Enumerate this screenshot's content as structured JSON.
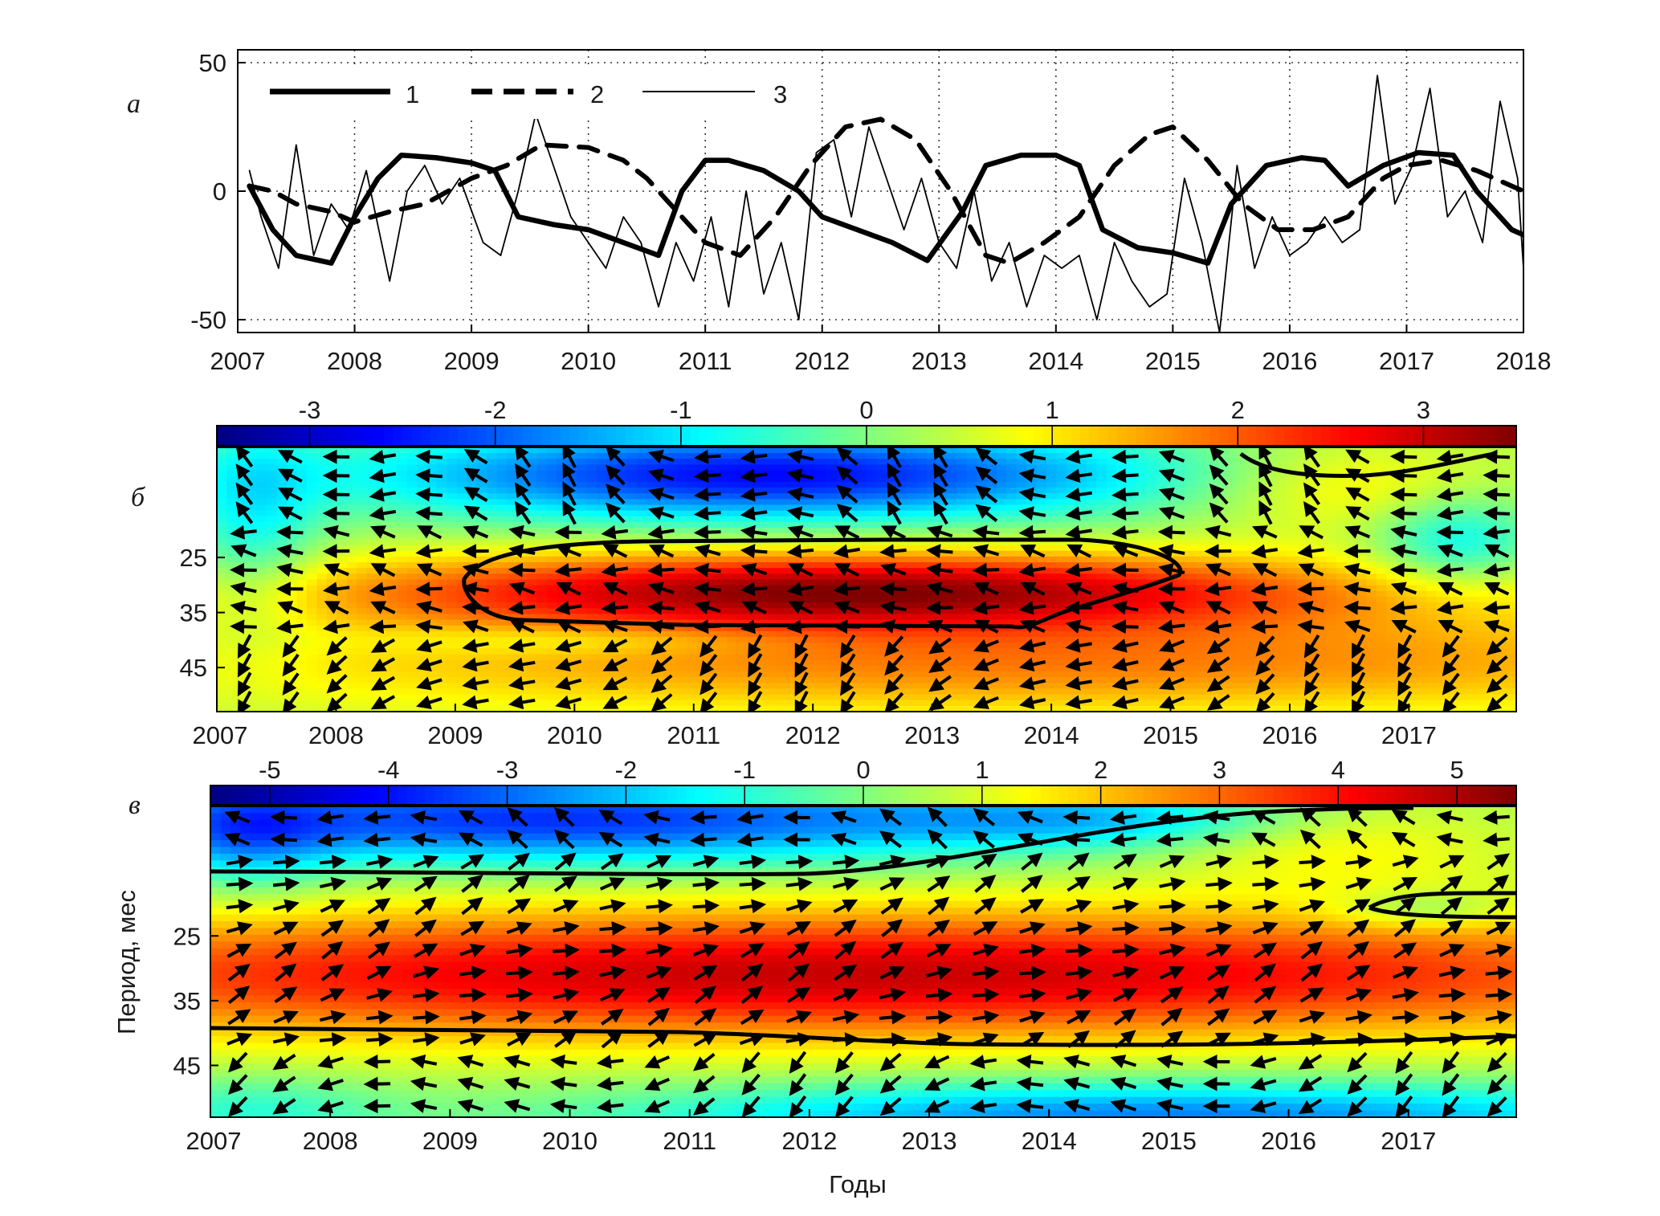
{
  "panel_labels": [
    "а",
    "б",
    "в"
  ],
  "chart_data": [
    {
      "type": "line",
      "panel": "а",
      "xlim": [
        2007,
        2018
      ],
      "ylim": [
        -55,
        55
      ],
      "x_ticks": [
        "2007",
        "2008",
        "2009",
        "2010",
        "2011",
        "2012",
        "2013",
        "2014",
        "2015",
        "2016",
        "2017",
        "2018"
      ],
      "y_ticks": [
        "50",
        "0",
        "-50"
      ],
      "grid": "dotted",
      "legend_position": "top-left",
      "series": [
        {
          "name": "1",
          "style": "thick-solid",
          "x": [
            2007.1,
            2007.3,
            2007.5,
            2007.8,
            2008.0,
            2008.2,
            2008.4,
            2008.7,
            2009.0,
            2009.2,
            2009.4,
            2009.7,
            2010.0,
            2010.3,
            2010.6,
            2010.8,
            2011.0,
            2011.2,
            2011.5,
            2011.8,
            2012.0,
            2012.3,
            2012.6,
            2012.9,
            2013.2,
            2013.4,
            2013.7,
            2014.0,
            2014.2,
            2014.4,
            2014.7,
            2015.0,
            2015.3,
            2015.5,
            2015.8,
            2016.1,
            2016.3,
            2016.5,
            2016.8,
            2017.1,
            2017.4,
            2017.6,
            2017.9,
            2018.0
          ],
          "values": [
            2,
            -15,
            -25,
            -28,
            -10,
            5,
            14,
            13,
            11,
            8,
            -10,
            -13,
            -15,
            -20,
            -25,
            0,
            12,
            12,
            8,
            0,
            -10,
            -15,
            -20,
            -27,
            -8,
            10,
            14,
            14,
            10,
            -15,
            -22,
            -24,
            -28,
            -5,
            10,
            13,
            12,
            2,
            10,
            15,
            14,
            0,
            -15,
            -17
          ]
        },
        {
          "name": "2",
          "style": "dashed",
          "x": [
            2007.1,
            2007.3,
            2007.5,
            2007.8,
            2008.0,
            2008.3,
            2008.6,
            2009.0,
            2009.3,
            2009.6,
            2010.0,
            2010.3,
            2010.5,
            2010.7,
            2011.0,
            2011.3,
            2011.6,
            2011.9,
            2012.2,
            2012.5,
            2012.8,
            2013.1,
            2013.4,
            2013.6,
            2013.9,
            2014.2,
            2014.5,
            2014.8,
            2015.0,
            2015.3,
            2015.6,
            2015.9,
            2016.2,
            2016.5,
            2016.8,
            2017.0,
            2017.3,
            2017.6,
            2017.9,
            2018.0
          ],
          "values": [
            2,
            0,
            -5,
            -8,
            -12,
            -8,
            -5,
            5,
            10,
            18,
            17,
            12,
            5,
            -5,
            -20,
            -25,
            -10,
            10,
            25,
            28,
            20,
            0,
            -25,
            -28,
            -20,
            -10,
            10,
            22,
            25,
            12,
            -5,
            -15,
            -15,
            -10,
            5,
            10,
            12,
            8,
            2,
            0
          ]
        },
        {
          "name": "3",
          "style": "thin-solid",
          "x": [
            2007.1,
            2007.2,
            2007.35,
            2007.5,
            2007.65,
            2007.8,
            2007.95,
            2008.1,
            2008.3,
            2008.45,
            2008.6,
            2008.75,
            2008.9,
            2009.1,
            2009.25,
            2009.4,
            2009.55,
            2009.7,
            2009.85,
            2010.0,
            2010.15,
            2010.3,
            2010.45,
            2010.6,
            2010.75,
            2010.9,
            2011.05,
            2011.2,
            2011.35,
            2011.5,
            2011.65,
            2011.8,
            2011.95,
            2012.1,
            2012.25,
            2012.4,
            2012.55,
            2012.7,
            2012.85,
            2013.0,
            2013.15,
            2013.3,
            2013.45,
            2013.6,
            2013.75,
            2013.9,
            2014.05,
            2014.2,
            2014.35,
            2014.5,
            2014.65,
            2014.8,
            2014.95,
            2015.1,
            2015.25,
            2015.4,
            2015.55,
            2015.7,
            2015.85,
            2016.0,
            2016.15,
            2016.3,
            2016.45,
            2016.6,
            2016.75,
            2016.9,
            2017.05,
            2017.2,
            2017.35,
            2017.5,
            2017.65,
            2017.8,
            2017.95,
            2018.0
          ],
          "values": [
            8,
            -10,
            -30,
            18,
            -25,
            -5,
            -15,
            8,
            -35,
            0,
            10,
            -5,
            5,
            -20,
            -25,
            0,
            30,
            10,
            -10,
            -20,
            -30,
            -10,
            -20,
            -45,
            -20,
            -35,
            -10,
            -45,
            0,
            -40,
            -20,
            -50,
            15,
            20,
            -10,
            25,
            5,
            -15,
            5,
            -20,
            -30,
            0,
            -35,
            -20,
            -45,
            -25,
            -30,
            -25,
            -50,
            -20,
            -35,
            -45,
            -40,
            5,
            -20,
            -55,
            10,
            -30,
            -10,
            -25,
            -20,
            -10,
            -20,
            -15,
            45,
            -5,
            10,
            40,
            -10,
            0,
            -20,
            35,
            5,
            -30
          ]
        }
      ]
    },
    {
      "type": "heatmap",
      "panel": "б",
      "colorbar_ticks": [
        "-3",
        "-2",
        "-1",
        "0",
        "1",
        "2",
        "3"
      ],
      "colorbar_range": [
        -3.5,
        3.5
      ],
      "xlim": [
        2007,
        2017.9
      ],
      "x_ticks": [
        "2007",
        "2008",
        "2009",
        "2010",
        "2011",
        "2012",
        "2013",
        "2014",
        "2015",
        "2016",
        "2017"
      ],
      "ylim": [
        5,
        53
      ],
      "y_ticks": [
        "25",
        "35",
        "45"
      ],
      "ylabel": "",
      "features": [
        "negative band at periods 5-20 mo, 2009-2014",
        "strong positive core at periods 26-38 mo, 2009.5-2015",
        "positive band at periods 35-50 mo through whole record",
        "vector (phase) arrows on regular grid"
      ]
    },
    {
      "type": "heatmap",
      "panel": "в",
      "colorbar_ticks": [
        "-5",
        "-4",
        "-3",
        "-2",
        "-1",
        "0",
        "1",
        "2",
        "3",
        "4",
        "5"
      ],
      "colorbar_range": [
        -5.5,
        5.5
      ],
      "xlim": [
        2007,
        2017.9
      ],
      "x_ticks": [
        "2007",
        "2008",
        "2009",
        "2010",
        "2011",
        "2012",
        "2013",
        "2014",
        "2015",
        "2016",
        "2017"
      ],
      "ylim": [
        5,
        53
      ],
      "y_ticks": [
        "25",
        "35",
        "45"
      ],
      "ylabel": "Период, мес",
      "xlabel": "Годы",
      "features": [
        "negative band at periods 5-12 mo, 2007-2013",
        "strong positive band at periods 20-40 mo across whole record",
        "negative band at periods 46-53 mo, 2011-2018",
        "vector (phase) arrows on regular grid"
      ]
    }
  ],
  "legend": [
    {
      "label": "1"
    },
    {
      "label": "2"
    },
    {
      "label": "3"
    }
  ]
}
